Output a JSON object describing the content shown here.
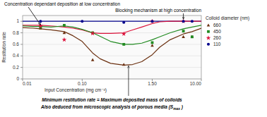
{
  "chart_data": {
    "type": "line",
    "log": "x",
    "grid": "y",
    "legend": "right",
    "xlabel": "Input Concentration (mg cm⁻³)",
    "ylabel": "Restitution rate",
    "legend_title": "Colloid diameter (nm)",
    "annotations": [
      {
        "text": "Concentration dependant deposition at low concentration",
        "x": 0.02,
        "y": 0.9
      },
      {
        "text": "Blocking mechanism at high concentration",
        "x": 5.0,
        "y": 1.0
      }
    ],
    "footer": [
      {
        "text": "Minimum restitution rate = Maximum deposited mass of colloids",
        "x": 0.6,
        "y": 0.24
      },
      {
        "text": "Also deduced from microscopic analysis of porous media (S",
        "subscript": "max",
        "text_after": " )"
      }
    ],
    "xlim": [
      0.01,
      10.0
    ],
    "ylim": [
      0,
      1.1
    ],
    "xticks": [
      0.01,
      {
        "value": 0.1,
        "label": "0.10"
      },
      {
        "value": 1.5,
        "label": "1.50"
      },
      {
        "value": 10.0,
        "label": "10.00"
      }
    ],
    "yticks": [
      0,
      0.2,
      0.4,
      0.6,
      0.8,
      1
    ],
    "series": [
      {
        "type": "line",
        "color": "#00008B",
        "x": [
          0.01,
          0.1,
          1.0,
          10.0
        ],
        "values": [
          1.0,
          1.0,
          1.0,
          1.0
        ]
      },
      {
        "type": "line",
        "color": "#DC143C",
        "x": [
          0.01,
          0.015,
          0.02,
          0.03,
          0.05,
          0.07,
          0.1,
          0.15,
          0.2,
          0.3,
          0.5,
          0.7,
          1.0,
          1.5,
          2.0,
          3.0,
          5.0,
          7.0,
          10.0
        ],
        "values": [
          0.93,
          0.93,
          0.93,
          0.92,
          0.9,
          0.88,
          0.85,
          0.8,
          0.79,
          0.79,
          0.8,
          0.85,
          0.9,
          0.96,
          0.99,
          1.0,
          1.0,
          1.0,
          1.0
        ]
      },
      {
        "type": "line",
        "color": "#228B22",
        "x": [
          0.01,
          0.015,
          0.02,
          0.03,
          0.05,
          0.07,
          0.1,
          0.15,
          0.2,
          0.3,
          0.5,
          0.7,
          1.0,
          1.5,
          2.0,
          3.0,
          5.0,
          7.0,
          10.0
        ],
        "values": [
          0.92,
          0.91,
          0.91,
          0.9,
          0.92,
          0.9,
          0.86,
          0.8,
          0.74,
          0.65,
          0.6,
          0.6,
          0.62,
          0.68,
          0.73,
          0.8,
          0.87,
          0.9,
          0.93
        ]
      },
      {
        "type": "line",
        "color": "#6B3010",
        "x": [
          0.01,
          0.015,
          0.02,
          0.03,
          0.05,
          0.07,
          0.1,
          0.15,
          0.2,
          0.3,
          0.5,
          0.7,
          1.0,
          1.5,
          2.0,
          3.0,
          5.0,
          7.0,
          10.0
        ],
        "values": [
          0.89,
          0.88,
          0.87,
          0.85,
          0.82,
          0.75,
          0.65,
          0.45,
          0.35,
          0.27,
          0.24,
          0.25,
          0.3,
          0.42,
          0.55,
          0.68,
          0.78,
          0.82,
          0.88
        ]
      },
      {
        "type": "scatter",
        "name": "660",
        "color": "#6B3010",
        "marker": "triangle",
        "x": [
          0.02,
          0.05,
          0.15,
          0.5,
          1.5,
          5.0,
          7.0
        ],
        "values": [
          0.88,
          0.8,
          0.33,
          0.25,
          0.58,
          0.73,
          0.73
        ]
      },
      {
        "type": "scatter",
        "name": "450",
        "color": "#228B22",
        "marker": "square",
        "x": [
          0.02,
          0.05,
          0.15,
          0.5,
          1.5,
          5.0,
          7.0
        ],
        "values": [
          0.9,
          0.93,
          0.8,
          0.6,
          0.63,
          0.83,
          0.73
        ]
      },
      {
        "type": "scatter",
        "name": "260",
        "color": "#DC143C",
        "marker": "star",
        "x": [
          0.02,
          0.05,
          0.15,
          0.5,
          1.5,
          5.0
        ],
        "values": [
          0.92,
          0.68,
          0.79,
          0.78,
          1.0,
          1.0
        ]
      },
      {
        "type": "scatter",
        "name": "110",
        "color": "#00008B",
        "marker": "circle",
        "x": [
          0.02,
          0.1,
          0.5,
          1.5,
          5.0,
          7.0
        ],
        "values": [
          1.0,
          1.0,
          0.98,
          1.0,
          1.0,
          1.0
        ]
      }
    ]
  }
}
